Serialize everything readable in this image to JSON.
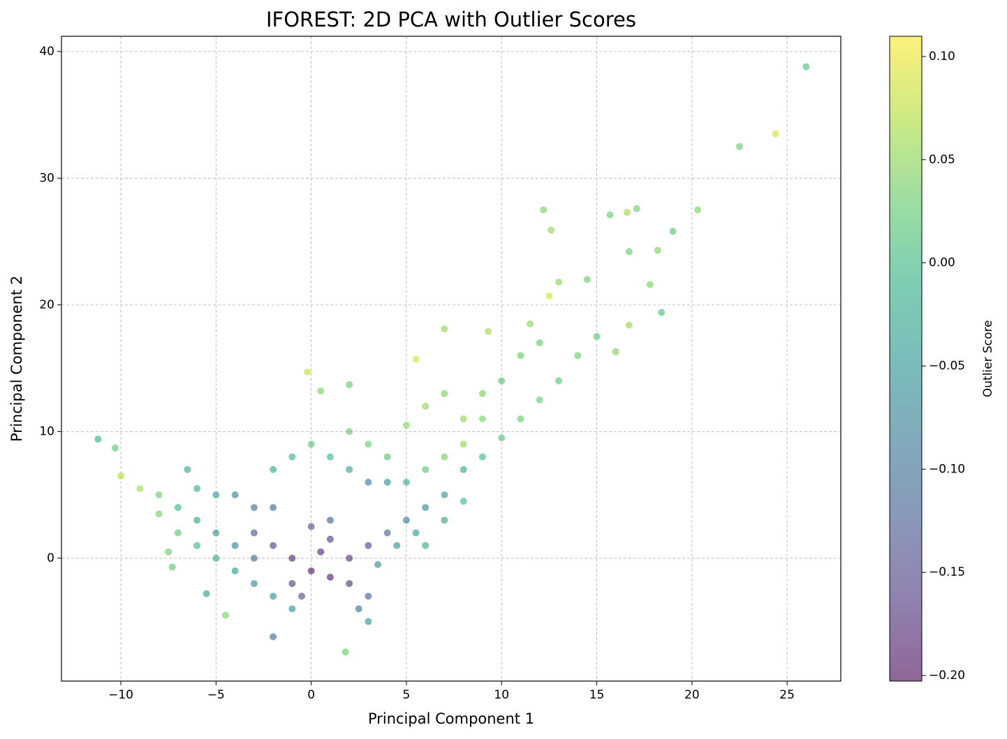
{
  "chart_data": {
    "type": "scatter",
    "title": "IFOREST: 2D PCA with Outlier Scores",
    "x_label": "Principal Component 1",
    "y_label": "Principal Component 2",
    "colorbar_label": "Outlier Score",
    "colormap": "viridis",
    "grid": true,
    "xlim": [
      -13.12,
      27.82
    ],
    "ylim": [
      -9.7,
      41.2
    ],
    "clim": [
      -0.2027,
      0.1098
    ],
    "xticks": [
      {
        "value": -10,
        "label": "−10"
      },
      {
        "value": -5,
        "label": "−5"
      },
      0,
      5,
      10,
      15,
      20,
      25
    ],
    "yticks": [
      0,
      10,
      20,
      30,
      40
    ],
    "cticks": [
      {
        "value": 0.1,
        "label": "0.10"
      },
      {
        "value": 0.05,
        "label": "0.05"
      },
      {
        "value": 0,
        "label": "0.00"
      },
      {
        "value": -0.05,
        "label": "−0.05"
      },
      {
        "value": -0.1,
        "label": "−0.10"
      },
      {
        "value": -0.15,
        "label": "−0.15"
      },
      {
        "value": -0.2,
        "label": "−0.20"
      }
    ],
    "x": [
      0,
      1,
      -1,
      0.5,
      2,
      -2,
      1,
      3,
      -1,
      2,
      0,
      -3,
      4,
      1,
      -0.5,
      3,
      2.5,
      3,
      -9,
      -10,
      -8,
      -7,
      -6,
      -5,
      -4,
      -3,
      -8,
      -7,
      -6,
      -5,
      -4,
      -3,
      -2,
      -1,
      -6,
      -5,
      -4,
      -3,
      -2,
      -11.2,
      -10.3,
      -7.5,
      -5.5,
      -4.5,
      -2,
      5,
      6,
      7,
      8,
      9,
      10,
      11,
      12,
      13,
      14,
      15,
      6,
      7,
      8,
      5,
      6,
      7,
      8,
      9,
      4,
      3,
      2,
      5,
      6,
      7,
      10,
      4,
      3,
      2,
      1,
      0,
      -1,
      -2,
      8,
      9,
      11,
      12,
      3.5,
      4.5,
      5.5,
      26,
      24.4,
      22.5,
      20.3,
      17.1,
      16.6,
      15.7,
      12.2,
      12.6,
      19,
      18.2,
      16.7,
      14.5,
      13,
      12.5,
      18.4,
      16.7,
      16,
      11.5,
      9.3,
      7,
      5.5,
      -0.2,
      2,
      1.8,
      -7.3,
      17.8,
      -6.5,
      0.5
    ],
    "y": [
      -1,
      -1.5,
      0,
      0.5,
      0,
      1,
      1.5,
      1,
      -2,
      -2,
      2.5,
      2,
      2,
      3,
      -3,
      -3,
      -4,
      -5,
      5.5,
      6.5,
      5,
      4,
      3,
      2,
      1,
      0,
      3.5,
      2,
      1,
      0,
      -1,
      -2,
      -3,
      -4,
      5.5,
      5,
      5,
      4,
      4,
      9.4,
      8.7,
      0.5,
      -2.8,
      -4.5,
      -6.2,
      3,
      4,
      5,
      7,
      8,
      9.5,
      11,
      12.5,
      14,
      16,
      17.5,
      1,
      3,
      4.5,
      6,
      7,
      8,
      9,
      11,
      8,
      9,
      10,
      10.5,
      12,
      13,
      14,
      6,
      6,
      7,
      8,
      9,
      8,
      7,
      11,
      13,
      16,
      17,
      -0.5,
      1,
      2,
      38.8,
      33.5,
      32.5,
      27.5,
      27.6,
      27.3,
      27.1,
      27.5,
      25.9,
      25.8,
      24.3,
      24.2,
      22,
      21.8,
      20.7,
      19.4,
      18.4,
      16.3,
      18.5,
      17.9,
      18.1,
      15.7,
      14.7,
      13.7,
      -7.4,
      -0.7,
      21.6,
      7,
      13.2
    ],
    "scores": [
      -0.19,
      -0.19,
      -0.18,
      -0.18,
      -0.17,
      -0.16,
      -0.16,
      -0.15,
      -0.16,
      -0.17,
      -0.14,
      -0.13,
      -0.12,
      -0.12,
      -0.14,
      -0.12,
      -0.1,
      -0.05,
      0.06,
      0.07,
      0.03,
      0,
      -0.03,
      -0.05,
      -0.08,
      -0.1,
      0.04,
      0.02,
      0,
      -0.02,
      -0.04,
      -0.06,
      -0.06,
      -0.05,
      -0.01,
      -0.04,
      -0.07,
      -0.1,
      -0.11,
      -0.01,
      0.02,
      0.03,
      -0.04,
      0.04,
      -0.1,
      -0.08,
      -0.06,
      -0.04,
      -0.02,
      0,
      0.02,
      0.03,
      0.03,
      0.02,
      0.03,
      0.02,
      -0.02,
      -0.03,
      0,
      -0.02,
      0.02,
      0.04,
      0.05,
      0.04,
      0.02,
      0.03,
      0.03,
      0.05,
      0.05,
      0.04,
      0.02,
      -0.06,
      -0.08,
      -0.03,
      0,
      0.02,
      0,
      -0.02,
      0.05,
      0.04,
      0.03,
      0.03,
      -0.06,
      -0.05,
      -0.04,
      0.01,
      0.09,
      0.03,
      0.04,
      0.03,
      0.06,
      0.03,
      0.04,
      0.05,
      0.02,
      0.04,
      0.03,
      0.03,
      0.05,
      0.09,
      0.01,
      0.06,
      0.04,
      0.05,
      0.06,
      0.05,
      0.09,
      0.08,
      0.03,
      0.03,
      0.02,
      0.04,
      -0.02,
      0.04
    ]
  }
}
